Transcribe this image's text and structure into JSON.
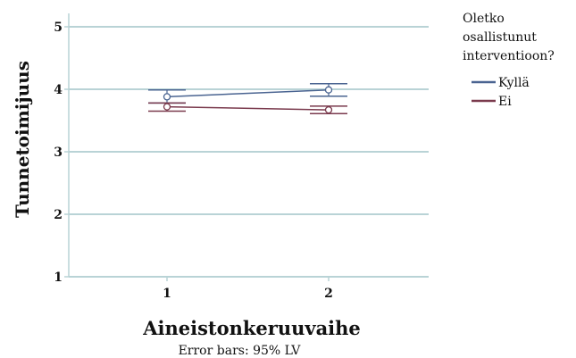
{
  "chart_data": {
    "type": "line",
    "xlabel": "Aineistonkeruuvaihe",
    "ylabel": "Tunnetoimijuus",
    "categories": [
      "1",
      "2"
    ],
    "ylim": [
      1,
      5
    ],
    "yticks": [
      "1",
      "2",
      "3",
      "4",
      "5"
    ],
    "grid": true,
    "legend": {
      "title_lines": [
        "Oletko",
        "osallistunut",
        "interventioon?"
      ],
      "placement": "right"
    },
    "footnote": "Error bars: 95% LV",
    "series": [
      {
        "name": "Kyllä",
        "color": "#4a6491",
        "values": [
          3.88,
          3.99
        ],
        "ci_low": [
          3.78,
          3.89
        ],
        "ci_high": [
          3.99,
          4.09
        ]
      },
      {
        "name": "Ei",
        "color": "#7a3a4d",
        "values": [
          3.72,
          3.67
        ],
        "ci_low": [
          3.65,
          3.61
        ],
        "ci_high": [
          3.78,
          3.73
        ]
      }
    ]
  }
}
